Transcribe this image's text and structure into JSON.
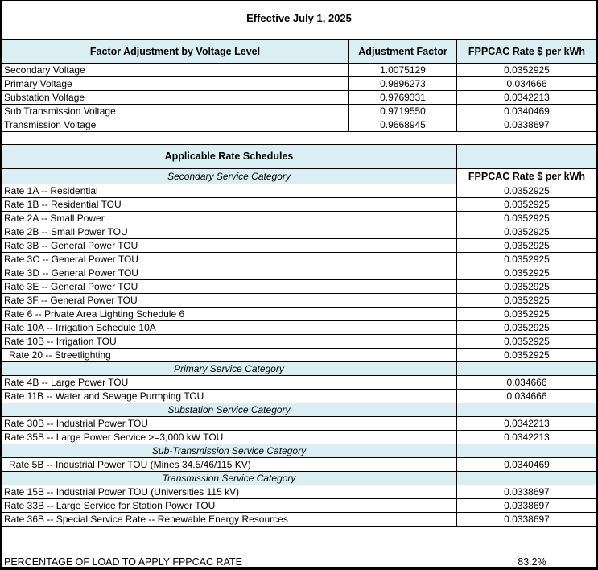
{
  "title": "Effective July 1, 2025",
  "colors": {
    "header_bg": "#DAEEF3",
    "border": "#000000"
  },
  "voltage_table": {
    "headers": [
      "Factor Adjustment by Voltage Level",
      "Adjustment Factor",
      "FPPCAC Rate $ per kWh"
    ],
    "rows": [
      {
        "label": "Secondary Voltage",
        "factor": "1.0075129",
        "rate": "0.0352925"
      },
      {
        "label": "Primary Voltage",
        "factor": "0.9896273",
        "rate": "0.034666"
      },
      {
        "label": "Substation Voltage",
        "factor": "0.9769331",
        "rate": "0.0342213"
      },
      {
        "label": "Sub Transmission Voltage",
        "factor": "0.9719550",
        "rate": "0.0340469"
      },
      {
        "label": "Transmission Voltage",
        "factor": "0.9668945",
        "rate": "0.0338697"
      }
    ]
  },
  "schedule_table": {
    "header": "Applicable Rate Schedules",
    "first_category": "Secondary Service Category",
    "rate_column_header": "FPPCAC Rate $ per kWh",
    "rows": [
      {
        "type": "rate",
        "label": "Rate 1A -- Residential",
        "value": "0.0352925"
      },
      {
        "type": "rate",
        "label": "Rate 1B -- Residential TOU",
        "value": "0.0352925"
      },
      {
        "type": "rate",
        "label": "Rate 2A -- Small Power",
        "value": "0.0352925"
      },
      {
        "type": "rate",
        "label": "Rate 2B -- Small Power TOU",
        "value": "0.0352925"
      },
      {
        "type": "rate",
        "label": "Rate 3B -- General Power TOU",
        "value": "0.0352925"
      },
      {
        "type": "rate",
        "label": "Rate 3C -- General Power TOU",
        "value": "0.0352925"
      },
      {
        "type": "rate",
        "label": "Rate 3D -- General Power TOU",
        "value": "0.0352925"
      },
      {
        "type": "rate",
        "label": "Rate 3E -- General Power TOU",
        "value": "0.0352925"
      },
      {
        "type": "rate",
        "label": "Rate 3F -- General Power TOU",
        "value": "0.0352925"
      },
      {
        "type": "rate",
        "label": "Rate 6 -- Private Area Lighting Schedule 6",
        "value": "0.0352925"
      },
      {
        "type": "rate",
        "label": "Rate 10A -- Irrigation Schedule 10A",
        "value": "0.0352925"
      },
      {
        "type": "rate",
        "label": "Rate 10B -- Irrigation TOU",
        "value": "0.0352925"
      },
      {
        "type": "rate",
        "label": "Rate 20 -- Streetlighting",
        "value": "0.0352925",
        "indent": true
      },
      {
        "type": "category",
        "label": "Primary Service Category"
      },
      {
        "type": "rate",
        "label": "Rate 4B -- Large Power TOU",
        "value": "0.034666"
      },
      {
        "type": "rate",
        "label": "Rate 11B -- Water and Sewage Purmping TOU",
        "value": "0.034666"
      },
      {
        "type": "category",
        "label": "Substation Service Category"
      },
      {
        "type": "rate",
        "label": "Rate 30B -- Industrial Power TOU",
        "value": "0.0342213"
      },
      {
        "type": "rate",
        "label": "Rate 35B -- Large Power Service >=3,000 kW TOU",
        "value": "0.0342213"
      },
      {
        "type": "category",
        "label": "Sub-Transmission Service Category"
      },
      {
        "type": "rate",
        "label": "Rate 5B -- Industrial Power TOU (Mines 34.5/46/115 KV)",
        "value": "0.0340469",
        "indent": true
      },
      {
        "type": "category",
        "label": "Transmission Service Category"
      },
      {
        "type": "rate",
        "label": "Rate 15B -- Industrial Power TOU (Universities 115 kV)",
        "value": "0.0338697"
      },
      {
        "type": "rate",
        "label": "Rate 33B -- Large Service for Station Power TOU",
        "value": "0.0338697"
      },
      {
        "type": "rate",
        "label": "Rate 36B -- Special Service Rate -- Renewable Energy Resources",
        "value": "0.0338697"
      }
    ]
  },
  "footer": {
    "label": "PERCENTAGE OF LOAD TO APPLY FPPCAC RATE",
    "value": "83.2%"
  }
}
